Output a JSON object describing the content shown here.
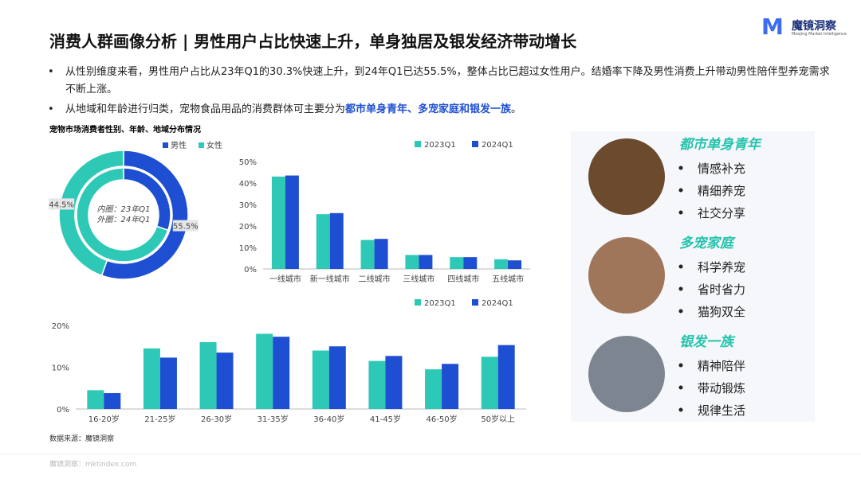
{
  "title": "消费人群画像分析 | 男性用户占比快速上升，单身独居及银发经济带动增长",
  "logo": {
    "name": "魔镜洞察",
    "tagline": "Moojing Market Intelligence"
  },
  "bullets": [
    {
      "parts": [
        "从性别维度来看，男性用户占比从23年Q1的30.3%快速上升，到24年Q1已达55.5%，整体占比已超过女性用户。结婚率下降及男性消费上升带动男性陪伴型养宠需求不断上涨。"
      ]
    },
    {
      "parts": [
        "从地域和年龄进行归类，宠物食品用品的消费群体可主要分为",
        "都市单身青年、多宠家庭和银发一族",
        "。"
      ]
    }
  ],
  "chart_data": [
    {
      "type": "donut",
      "title": "宠物市场消费者性别、年龄、地域分布情况",
      "categories": [
        "男性",
        "女性"
      ],
      "colors": [
        "#1e4fd2",
        "#2ec9b6"
      ],
      "rings": [
        {
          "name": "内圈：23年Q1",
          "values": [
            30.3,
            69.7
          ]
        },
        {
          "name": "外圈：24年Q1",
          "values": [
            55.5,
            44.5
          ],
          "value_labels": [
            "55.5%",
            "44.5%"
          ]
        }
      ]
    },
    {
      "type": "bar",
      "categories": [
        "一线城市",
        "新一线城市",
        "二线城市",
        "三线城市",
        "四线城市",
        "五线城市"
      ],
      "series": [
        {
          "name": "2023Q1",
          "color": "#2ec9b6",
          "values": [
            43,
            25.5,
            13.5,
            6.5,
            5.5,
            4.5
          ]
        },
        {
          "name": "2024Q1",
          "color": "#1e4fd2",
          "values": [
            43.5,
            26,
            14,
            6.5,
            5.5,
            4
          ]
        }
      ],
      "ylim": [
        0,
        50
      ],
      "yticks": [
        {
          "value": 0,
          "label": "0%"
        },
        {
          "value": 10,
          "label": "10%"
        },
        {
          "value": 20,
          "label": "20%"
        },
        {
          "value": 30,
          "label": "30%"
        },
        {
          "value": 40,
          "label": "40%"
        },
        {
          "value": 50,
          "label": "50%"
        }
      ]
    },
    {
      "type": "bar",
      "categories": [
        "16-20岁",
        "21-25岁",
        "26-30岁",
        "31-35岁",
        "36-40岁",
        "41-45岁",
        "46-50岁",
        "50岁以上"
      ],
      "series": [
        {
          "name": "2023Q1",
          "color": "#2ec9b6",
          "values": [
            4.5,
            14.5,
            16,
            18,
            14,
            11.5,
            9.5,
            12.5
          ]
        },
        {
          "name": "2024Q1",
          "color": "#1e4fd2",
          "values": [
            3.8,
            12.3,
            13.5,
            17.3,
            15,
            12.7,
            10.8,
            15.3
          ]
        }
      ],
      "ylim": [
        0,
        20
      ],
      "yticks": [
        {
          "value": 0,
          "label": "0%"
        },
        {
          "value": 10,
          "label": "10%"
        },
        {
          "value": 20,
          "label": "20%"
        }
      ]
    }
  ],
  "source": "数据来源：魔镜洞察",
  "footer": "魔镜洞察：mktindex.com",
  "groups": [
    {
      "title": "都市单身青年",
      "items": [
        "情感补充",
        "精细养宠",
        "社交分享"
      ]
    },
    {
      "title": "多宠家庭",
      "items": [
        "科学养宠",
        "省时省力",
        "猫狗双全"
      ]
    },
    {
      "title": "银发一族",
      "items": [
        "精神陪伴",
        "带动锻炼",
        "规律生活"
      ]
    }
  ]
}
